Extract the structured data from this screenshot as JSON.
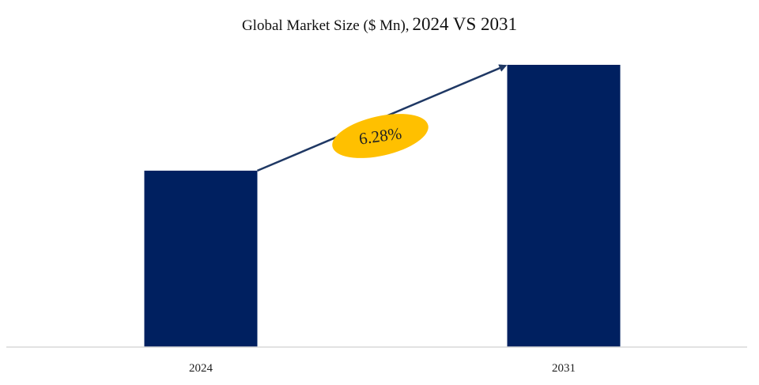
{
  "chart_data": {
    "type": "bar",
    "title": "Global Market Size ($ Mn),",
    "title_years": "2024 VS 2031",
    "categories": [
      "2024",
      "2031"
    ],
    "values": [
      62.5,
      100
    ],
    "ylim": [
      0,
      100
    ],
    "grid": false,
    "bar_color": "#002060",
    "annotation": {
      "label": "6.28%",
      "color": "#FFC000",
      "arrow_color": "#1F3864"
    }
  }
}
